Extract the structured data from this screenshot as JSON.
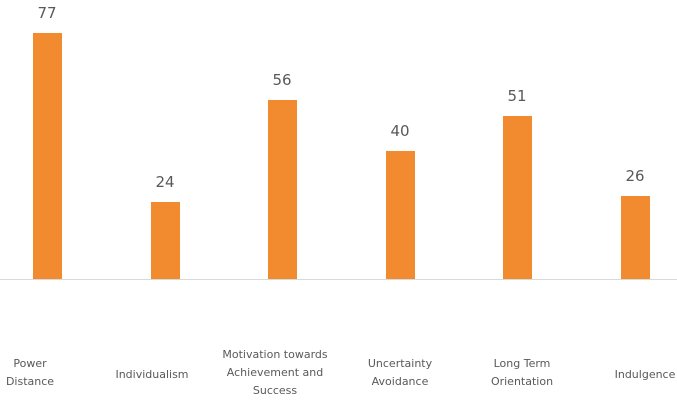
{
  "chart_data": {
    "type": "bar",
    "title": "",
    "xlabel": "",
    "ylabel": "",
    "categories": [
      "Power Distance",
      "Individualism",
      "Motivation towards Achievement and Success",
      "Uncertainty Avoidance",
      "Long Term Orientation",
      "Indulgence"
    ],
    "values": [
      77,
      24,
      56,
      40,
      51,
      26
    ],
    "ylim": [
      0,
      100
    ],
    "grid": false,
    "legend": null,
    "bar_color": "#f28a30"
  },
  "labels": {
    "cat0_l1": "Power",
    "cat0_l2": "Distance",
    "cat1_l1": "Individualism",
    "cat2_l1": "Motivation towards",
    "cat2_l2": "Achievement and",
    "cat2_l3": "Success",
    "cat3_l1": "Uncertainty",
    "cat3_l2": "Avoidance",
    "cat4_l1": "Long Term",
    "cat4_l2": "Orientation",
    "cat5_l1": "Indulgence"
  }
}
